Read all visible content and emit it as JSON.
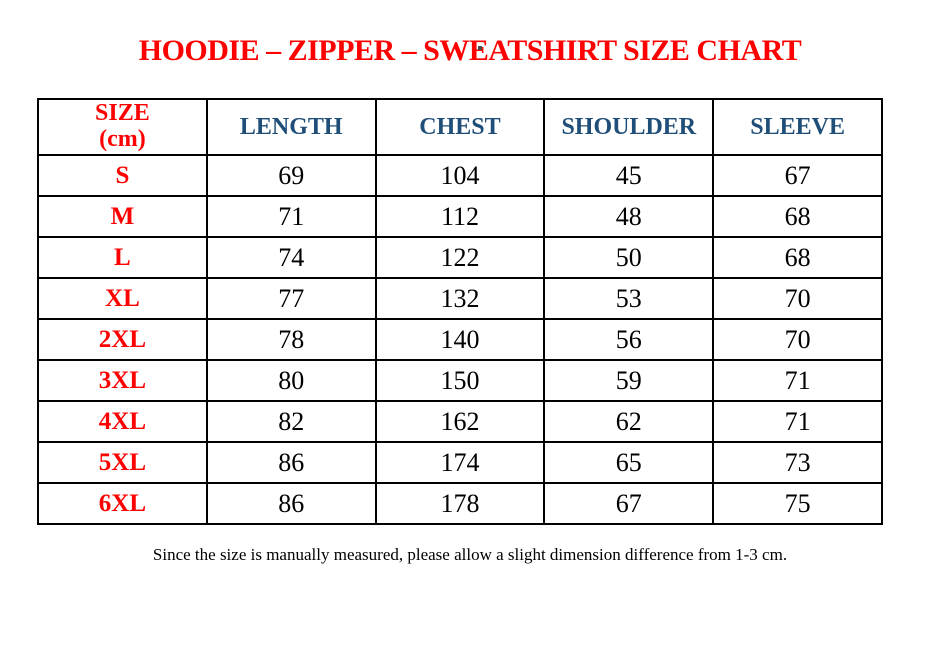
{
  "title": "HOODIE – ZIPPER – SWEATSHIRT SIZE CHART",
  "table": {
    "header": {
      "size_label": "SIZE",
      "size_unit": "(cm)",
      "columns": [
        "LENGTH",
        "CHEST",
        "SHOULDER",
        "SLEEVE"
      ]
    },
    "rows": [
      {
        "size": "S",
        "length": "69",
        "chest": "104",
        "shoulder": "45",
        "sleeve": "67"
      },
      {
        "size": "M",
        "length": "71",
        "chest": "112",
        "shoulder": "48",
        "sleeve": "68"
      },
      {
        "size": "L",
        "length": "74",
        "chest": "122",
        "shoulder": "50",
        "sleeve": "68"
      },
      {
        "size": "XL",
        "length": "77",
        "chest": "132",
        "shoulder": "53",
        "sleeve": "70"
      },
      {
        "size": "2XL",
        "length": "78",
        "chest": "140",
        "shoulder": "56",
        "sleeve": "70"
      },
      {
        "size": "3XL",
        "length": "80",
        "chest": "150",
        "shoulder": "59",
        "sleeve": "71"
      },
      {
        "size": "4XL",
        "length": "82",
        "chest": "162",
        "shoulder": "62",
        "sleeve": "71"
      },
      {
        "size": "5XL",
        "length": "86",
        "chest": "174",
        "shoulder": "65",
        "sleeve": "73"
      },
      {
        "size": "6XL",
        "length": "86",
        "chest": "178",
        "shoulder": "67",
        "sleeve": "75"
      }
    ]
  },
  "footer": {
    "note": "Since the size is manually measured, please allow a slight dimension difference from 1-3 cm."
  },
  "colors": {
    "title_red": "#fe0000",
    "header_blue": "#1f4e79",
    "text_black": "#000000"
  }
}
